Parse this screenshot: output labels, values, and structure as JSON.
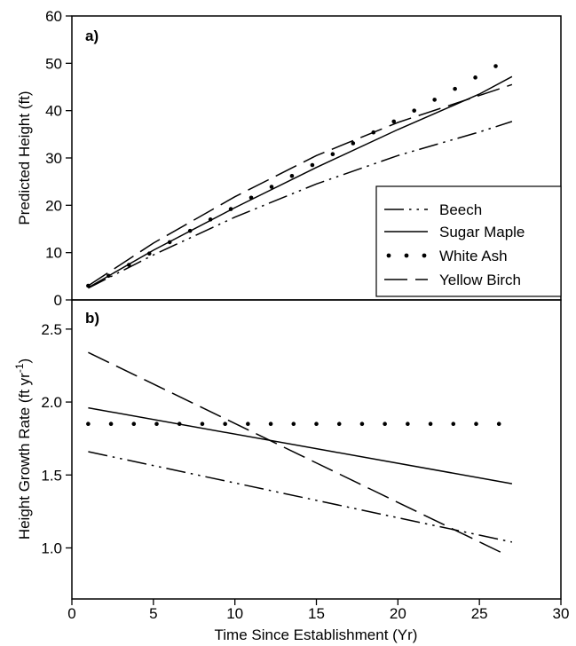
{
  "chart_data": [
    {
      "type": "line",
      "panel_label": "a)",
      "xlabel": "",
      "ylabel": "Predicted Height (ft)",
      "xlim": [
        0,
        30
      ],
      "ylim": [
        0,
        60
      ],
      "yticks": [
        0,
        10,
        20,
        30,
        40,
        50,
        60
      ],
      "grid": false,
      "legend": "center-right",
      "series": [
        {
          "name": "Beech",
          "style": "dash-dot-dot",
          "x": [
            1,
            5,
            10,
            15,
            20,
            25,
            27
          ],
          "y": [
            2.5,
            9.5,
            17.5,
            24.5,
            30.5,
            35.5,
            37.7
          ]
        },
        {
          "name": "Sugar Maple",
          "style": "solid",
          "x": [
            1,
            5,
            10,
            15,
            20,
            25,
            27
          ],
          "y": [
            2.6,
            10.5,
            19.5,
            28,
            36,
            43.5,
            47.2
          ]
        },
        {
          "name": "White Ash",
          "style": "dotted",
          "x": [
            1,
            2.25,
            3.5,
            4.75,
            6,
            7.25,
            8.5,
            9.75,
            11,
            12.25,
            13.5,
            14.75,
            16,
            17.25,
            18.5,
            19.75,
            21,
            22.25,
            23.5,
            24.75,
            26
          ],
          "y": [
            3,
            5.1,
            7.4,
            9.8,
            12.2,
            14.6,
            17,
            19.2,
            21.6,
            23.9,
            26.2,
            28.5,
            30.8,
            33.1,
            35.4,
            37.7,
            40,
            42.3,
            44.6,
            47,
            49.4
          ]
        },
        {
          "name": "Yellow Birch",
          "style": "long-dash",
          "x": [
            1,
            5,
            10,
            15,
            20,
            25,
            27
          ],
          "y": [
            3,
            12,
            21.8,
            30.5,
            37.5,
            43.2,
            45.5
          ]
        }
      ]
    },
    {
      "type": "line",
      "panel_label": "b)",
      "xlabel": "Time Since Establishment (Yr)",
      "ylabel": "Height Growth Rate (ft yr",
      "ylabel_superscript": "-1",
      "ylabel_suffix": ")",
      "xlim": [
        0,
        30
      ],
      "ylim": [
        0.65,
        2.7
      ],
      "xticks": [
        0,
        5,
        10,
        15,
        20,
        25,
        30
      ],
      "yticks": [
        1.0,
        1.5,
        2.0,
        2.5
      ],
      "grid": false,
      "series": [
        {
          "name": "Beech",
          "style": "dash-dot-dot",
          "x": [
            1,
            27
          ],
          "y": [
            1.66,
            1.04
          ]
        },
        {
          "name": "Sugar Maple",
          "style": "solid",
          "x": [
            1,
            27
          ],
          "y": [
            1.96,
            1.44
          ]
        },
        {
          "name": "White Ash",
          "style": "dotted",
          "x": [
            1,
            2.4,
            3.8,
            5.2,
            6.6,
            8,
            9.4,
            10.8,
            12.2,
            13.6,
            15,
            16.4,
            17.8,
            19.2,
            20.6,
            22,
            23.4,
            24.8,
            26.2
          ],
          "y": [
            1.85,
            1.85,
            1.85,
            1.85,
            1.85,
            1.85,
            1.85,
            1.85,
            1.85,
            1.85,
            1.85,
            1.85,
            1.85,
            1.85,
            1.85,
            1.85,
            1.85,
            1.85,
            1.85
          ]
        },
        {
          "name": "Yellow Birch",
          "style": "long-dash",
          "x": [
            1,
            26.5
          ],
          "y": [
            2.34,
            0.96
          ]
        }
      ]
    }
  ]
}
